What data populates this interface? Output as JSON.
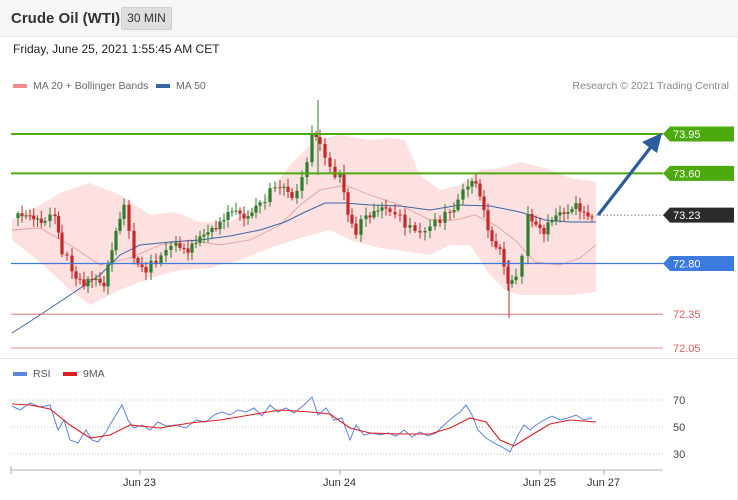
{
  "header": {
    "title": "Crude Oil (WTI)",
    "timeframe": "30 MIN"
  },
  "datetime": "Friday, June 25, 2021 1:55:45 AM CET",
  "legend": {
    "ma20": {
      "label": "MA 20 + Bollinger Bands",
      "color": "#f28c8c"
    },
    "ma50": {
      "label": "MA 50",
      "color": "#3a64a8"
    }
  },
  "copyright": "Research © 2021 Trading Central",
  "levels": [
    {
      "value": "73.95",
      "kind": "resistance",
      "color": "#4caa0c"
    },
    {
      "value": "73.60",
      "kind": "resistance",
      "color": "#4caa0c"
    },
    {
      "value": "73.23",
      "kind": "last",
      "color": "#2b2b2b"
    },
    {
      "value": "72.80",
      "kind": "pivot",
      "color": "#3d7ae0"
    },
    {
      "value": "72.35",
      "kind": "support",
      "color": "#e06060"
    },
    {
      "value": "72.05",
      "kind": "support",
      "color": "#e06060"
    }
  ],
  "rsi": {
    "legend_rsi": "RSI",
    "legend_ma": "9MA",
    "rsi_color": "#5b84e0",
    "ma_color": "#dd1f1f",
    "ticks": [
      "70",
      "50",
      "30"
    ]
  },
  "xaxis": [
    "Jun 23",
    "Jun 24",
    "Jun 25",
    "Jun 27"
  ],
  "colors": {
    "up": "#2f7d2f",
    "down": "#c62828",
    "band": "#fde0e0",
    "arrow": "#2c5c9e"
  }
}
